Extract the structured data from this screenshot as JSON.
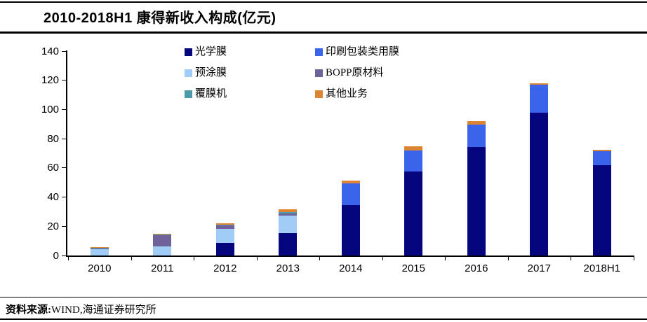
{
  "header": {
    "title": "2010-2018H1 康得新收入构成(亿元)"
  },
  "footer": {
    "source_label": "资料来源:",
    "source_text": "WIND,海通证券研究所"
  },
  "chart_data": {
    "type": "bar",
    "stacked": true,
    "title": "2010-2018H1 康得新收入构成(亿元)",
    "unit": "亿元",
    "categories": [
      "2010",
      "2011",
      "2012",
      "2013",
      "2014",
      "2015",
      "2016",
      "2017",
      "2018H1"
    ],
    "series": [
      {
        "name": "光学膜",
        "key": "optical-film",
        "color": "#05057e",
        "values": [
          0,
          0,
          8.8,
          15.5,
          34.5,
          57.5,
          74.5,
          97.7,
          62.0
        ]
      },
      {
        "name": "印刷包装类用膜",
        "key": "printing-packaging-film",
        "color": "#3a64ea",
        "values": [
          0,
          0,
          0,
          0,
          14.7,
          14.5,
          15.0,
          19.1,
          9.5
        ]
      },
      {
        "name": "预涂膜",
        "key": "prelaminating-film",
        "color": "#a0ccf5",
        "values": [
          4.3,
          6.0,
          9.4,
          11.7,
          0,
          0,
          0,
          0,
          0
        ]
      },
      {
        "name": "BOPP原材料",
        "key": "bopp-material",
        "color": "#6f629b",
        "values": [
          0.6,
          7.8,
          2.2,
          1.8,
          0,
          0,
          0,
          0,
          0
        ]
      },
      {
        "name": "覆膜机",
        "key": "laminating-machine",
        "color": "#4e9aab",
        "values": [
          0.2,
          0.6,
          0.5,
          0.5,
          0,
          0,
          0,
          0,
          0
        ]
      },
      {
        "name": "其他业务",
        "key": "other-business",
        "color": "#dd8435",
        "values": [
          0.5,
          0.6,
          1.1,
          2.0,
          2.3,
          3.0,
          2.7,
          1.1,
          0.8
        ]
      }
    ],
    "totals": [
      5.6,
      15.0,
      22.0,
      31.5,
      51.5,
      75.0,
      92.2,
      117.9,
      72.3
    ],
    "ylim": [
      0,
      140
    ],
    "yticks": [
      0,
      20,
      40,
      60,
      80,
      100,
      120,
      140
    ],
    "legend_position": "top-center",
    "grid": false,
    "axis_color": "#000000"
  }
}
